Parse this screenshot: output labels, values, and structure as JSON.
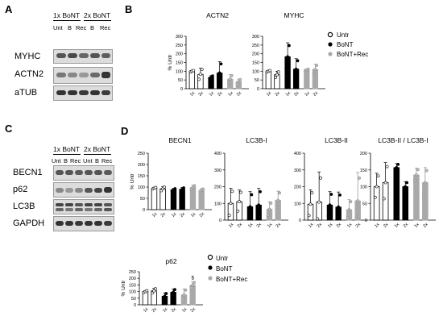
{
  "panels": {
    "A": {
      "letter": "A",
      "conditions": [
        "1x BoNT",
        "2x BoNT"
      ],
      "lanes": [
        "Unt",
        "B",
        "Rec",
        "B",
        "Rec"
      ],
      "blots": [
        "MYHC",
        "ACTN2",
        "aTUB"
      ]
    },
    "B": {
      "letter": "B"
    },
    "C": {
      "letter": "C",
      "conditions": [
        "1x BoNT",
        "2x BoNT"
      ],
      "lanes": [
        "Unt",
        "B",
        "Rec",
        "Unt",
        "B",
        "Rec"
      ],
      "blots": [
        "BECN1",
        "p62",
        "LC3B",
        "GAPDH"
      ]
    },
    "D": {
      "letter": "D"
    }
  },
  "legend_B": [
    "Untr",
    "BoNT",
    "BoNT+Rec"
  ],
  "legend_p62": [
    "Untr",
    "BoNT",
    "BoNT+Rec"
  ],
  "colors": {
    "untr": "#ffffff",
    "bont": "#000000",
    "rec": "#a9a9a9",
    "axis": "#000000"
  },
  "chart_data": [
    {
      "id": "actn2",
      "type": "bar",
      "title": "ACTN2",
      "ylabel": "% Untr",
      "ylim": [
        0,
        300
      ],
      "yticks": [
        0,
        50,
        100,
        150,
        200,
        250,
        300
      ],
      "xticks": [
        "1x",
        "2x",
        "1x",
        "2x",
        "1x",
        "2x"
      ],
      "values": [
        100,
        82,
        65,
        90,
        55,
        40
      ],
      "errors": [
        5,
        35,
        10,
        65,
        25,
        15
      ]
    },
    {
      "id": "myhc",
      "type": "bar",
      "title": "MYHC",
      "ylim": [
        0,
        300
      ],
      "yticks": [
        0,
        50,
        100,
        150,
        200,
        250,
        300
      ],
      "xticks": [
        "1x",
        "2x",
        "1x",
        "2x",
        "1x",
        "2x"
      ],
      "values": [
        100,
        80,
        183,
        112,
        108,
        110
      ],
      "errors": [
        5,
        20,
        80,
        60,
        5,
        30
      ]
    },
    {
      "id": "becn1",
      "type": "bar",
      "title": "BECN1",
      "ylabel": "% Untr",
      "ylim": [
        0,
        250
      ],
      "yticks": [
        0,
        50,
        100,
        150,
        200,
        250
      ],
      "xticks": [
        "1x",
        "2x",
        "1x",
        "2x",
        "1x",
        "2x"
      ],
      "values": [
        95,
        92,
        88,
        90,
        98,
        85
      ],
      "errors": [
        4,
        10,
        6,
        8,
        10,
        8
      ]
    },
    {
      "id": "lc3bi",
      "type": "bar",
      "title": "LC3B-I",
      "ylim": [
        0,
        400
      ],
      "yticks": [
        0,
        100,
        200,
        300,
        400
      ],
      "xticks": [
        "1x",
        "2x",
        "1x",
        "2x",
        "1x",
        "2x"
      ],
      "values": [
        100,
        110,
        80,
        90,
        65,
        118
      ],
      "errors": [
        90,
        70,
        90,
        100,
        45,
        55
      ]
    },
    {
      "id": "lc3bii",
      "type": "bar",
      "title": "LC3B-II",
      "ylim": [
        0,
        400
      ],
      "yticks": [
        0,
        100,
        200,
        300,
        400
      ],
      "xticks": [
        "1x",
        "2x",
        "1x",
        "2x",
        "1x",
        "2x"
      ],
      "values": [
        95,
        108,
        90,
        78,
        62,
        115
      ],
      "errors": [
        85,
        180,
        80,
        90,
        60,
        170
      ]
    },
    {
      "id": "lc3bratio",
      "type": "bar",
      "title": "LC3B-II / LC3B-I",
      "ylim": [
        0,
        200
      ],
      "yticks": [
        0,
        50,
        100,
        150,
        200
      ],
      "xticks": [
        "1x",
        "2x",
        "1x",
        "2x",
        "1x",
        "2x"
      ],
      "values": [
        100,
        112,
        157,
        100,
        135,
        112
      ],
      "errors": [
        40,
        60,
        12,
        15,
        20,
        45
      ]
    },
    {
      "id": "p62",
      "type": "bar",
      "title": "p62",
      "ylabel": "% Untr",
      "ylim": [
        0,
        250
      ],
      "yticks": [
        0,
        50,
        100,
        150,
        200,
        250
      ],
      "xticks": [
        "1x",
        "2x",
        "1x",
        "2x",
        "1x",
        "2x"
      ],
      "values": [
        100,
        105,
        65,
        95,
        75,
        148
      ],
      "errors": [
        8,
        20,
        25,
        25,
        45,
        25
      ],
      "annotations": [
        {
          "bar": 5,
          "text": "$"
        }
      ]
    }
  ]
}
